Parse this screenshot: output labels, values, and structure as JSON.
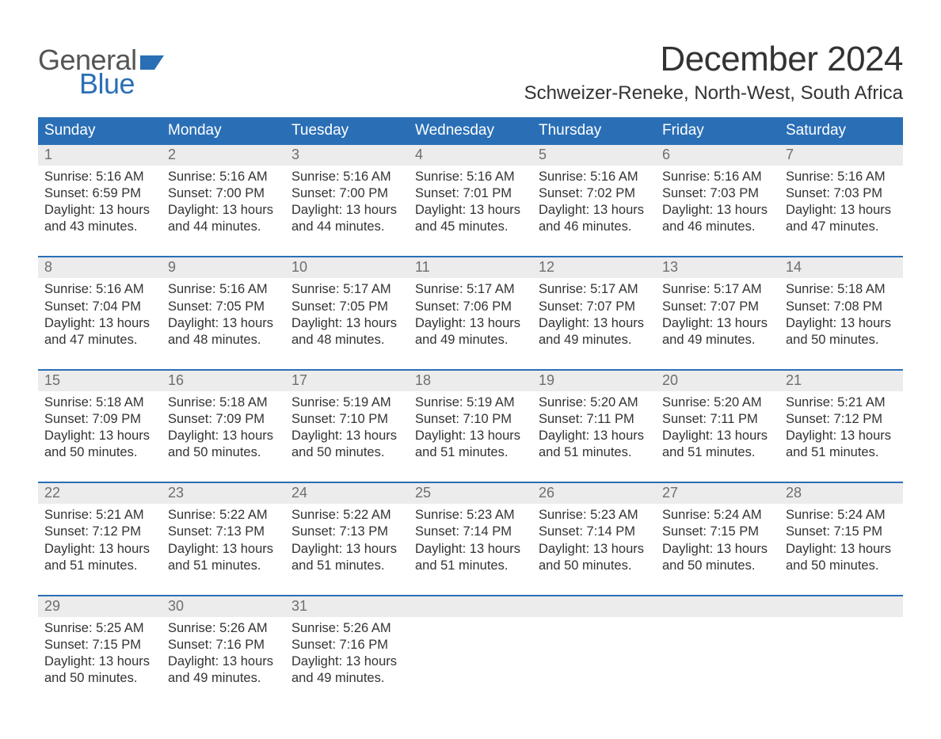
{
  "logo": {
    "text1": "General",
    "text2": "Blue"
  },
  "title": "December 2024",
  "subtitle": "Schweizer-Reneke, North-West, South Africa",
  "colors": {
    "header_bg": "#2a6fb6",
    "header_text": "#ffffff",
    "date_row_bg": "#ececec",
    "date_text": "#6e6e6e",
    "week_divider": "#2a6fb6",
    "body_text": "#333333",
    "logo_gray": "#555555",
    "logo_blue": "#2a6fb6",
    "page_bg": "#ffffff"
  },
  "typography": {
    "title_fontsize": 44,
    "subtitle_fontsize": 24,
    "header_fontsize": 19,
    "datenum_fontsize": 18,
    "body_fontsize": 16.5,
    "logo_fontsize": 36,
    "font_family": "Arial"
  },
  "day_names": [
    "Sunday",
    "Monday",
    "Tuesday",
    "Wednesday",
    "Thursday",
    "Friday",
    "Saturday"
  ],
  "weeks": [
    [
      {
        "date": "1",
        "sunrise": "Sunrise: 5:16 AM",
        "sunset": "Sunset: 6:59 PM",
        "daylight1": "Daylight: 13 hours",
        "daylight2": "and 43 minutes."
      },
      {
        "date": "2",
        "sunrise": "Sunrise: 5:16 AM",
        "sunset": "Sunset: 7:00 PM",
        "daylight1": "Daylight: 13 hours",
        "daylight2": "and 44 minutes."
      },
      {
        "date": "3",
        "sunrise": "Sunrise: 5:16 AM",
        "sunset": "Sunset: 7:00 PM",
        "daylight1": "Daylight: 13 hours",
        "daylight2": "and 44 minutes."
      },
      {
        "date": "4",
        "sunrise": "Sunrise: 5:16 AM",
        "sunset": "Sunset: 7:01 PM",
        "daylight1": "Daylight: 13 hours",
        "daylight2": "and 45 minutes."
      },
      {
        "date": "5",
        "sunrise": "Sunrise: 5:16 AM",
        "sunset": "Sunset: 7:02 PM",
        "daylight1": "Daylight: 13 hours",
        "daylight2": "and 46 minutes."
      },
      {
        "date": "6",
        "sunrise": "Sunrise: 5:16 AM",
        "sunset": "Sunset: 7:03 PM",
        "daylight1": "Daylight: 13 hours",
        "daylight2": "and 46 minutes."
      },
      {
        "date": "7",
        "sunrise": "Sunrise: 5:16 AM",
        "sunset": "Sunset: 7:03 PM",
        "daylight1": "Daylight: 13 hours",
        "daylight2": "and 47 minutes."
      }
    ],
    [
      {
        "date": "8",
        "sunrise": "Sunrise: 5:16 AM",
        "sunset": "Sunset: 7:04 PM",
        "daylight1": "Daylight: 13 hours",
        "daylight2": "and 47 minutes."
      },
      {
        "date": "9",
        "sunrise": "Sunrise: 5:16 AM",
        "sunset": "Sunset: 7:05 PM",
        "daylight1": "Daylight: 13 hours",
        "daylight2": "and 48 minutes."
      },
      {
        "date": "10",
        "sunrise": "Sunrise: 5:17 AM",
        "sunset": "Sunset: 7:05 PM",
        "daylight1": "Daylight: 13 hours",
        "daylight2": "and 48 minutes."
      },
      {
        "date": "11",
        "sunrise": "Sunrise: 5:17 AM",
        "sunset": "Sunset: 7:06 PM",
        "daylight1": "Daylight: 13 hours",
        "daylight2": "and 49 minutes."
      },
      {
        "date": "12",
        "sunrise": "Sunrise: 5:17 AM",
        "sunset": "Sunset: 7:07 PM",
        "daylight1": "Daylight: 13 hours",
        "daylight2": "and 49 minutes."
      },
      {
        "date": "13",
        "sunrise": "Sunrise: 5:17 AM",
        "sunset": "Sunset: 7:07 PM",
        "daylight1": "Daylight: 13 hours",
        "daylight2": "and 49 minutes."
      },
      {
        "date": "14",
        "sunrise": "Sunrise: 5:18 AM",
        "sunset": "Sunset: 7:08 PM",
        "daylight1": "Daylight: 13 hours",
        "daylight2": "and 50 minutes."
      }
    ],
    [
      {
        "date": "15",
        "sunrise": "Sunrise: 5:18 AM",
        "sunset": "Sunset: 7:09 PM",
        "daylight1": "Daylight: 13 hours",
        "daylight2": "and 50 minutes."
      },
      {
        "date": "16",
        "sunrise": "Sunrise: 5:18 AM",
        "sunset": "Sunset: 7:09 PM",
        "daylight1": "Daylight: 13 hours",
        "daylight2": "and 50 minutes."
      },
      {
        "date": "17",
        "sunrise": "Sunrise: 5:19 AM",
        "sunset": "Sunset: 7:10 PM",
        "daylight1": "Daylight: 13 hours",
        "daylight2": "and 50 minutes."
      },
      {
        "date": "18",
        "sunrise": "Sunrise: 5:19 AM",
        "sunset": "Sunset: 7:10 PM",
        "daylight1": "Daylight: 13 hours",
        "daylight2": "and 51 minutes."
      },
      {
        "date": "19",
        "sunrise": "Sunrise: 5:20 AM",
        "sunset": "Sunset: 7:11 PM",
        "daylight1": "Daylight: 13 hours",
        "daylight2": "and 51 minutes."
      },
      {
        "date": "20",
        "sunrise": "Sunrise: 5:20 AM",
        "sunset": "Sunset: 7:11 PM",
        "daylight1": "Daylight: 13 hours",
        "daylight2": "and 51 minutes."
      },
      {
        "date": "21",
        "sunrise": "Sunrise: 5:21 AM",
        "sunset": "Sunset: 7:12 PM",
        "daylight1": "Daylight: 13 hours",
        "daylight2": "and 51 minutes."
      }
    ],
    [
      {
        "date": "22",
        "sunrise": "Sunrise: 5:21 AM",
        "sunset": "Sunset: 7:12 PM",
        "daylight1": "Daylight: 13 hours",
        "daylight2": "and 51 minutes."
      },
      {
        "date": "23",
        "sunrise": "Sunrise: 5:22 AM",
        "sunset": "Sunset: 7:13 PM",
        "daylight1": "Daylight: 13 hours",
        "daylight2": "and 51 minutes."
      },
      {
        "date": "24",
        "sunrise": "Sunrise: 5:22 AM",
        "sunset": "Sunset: 7:13 PM",
        "daylight1": "Daylight: 13 hours",
        "daylight2": "and 51 minutes."
      },
      {
        "date": "25",
        "sunrise": "Sunrise: 5:23 AM",
        "sunset": "Sunset: 7:14 PM",
        "daylight1": "Daylight: 13 hours",
        "daylight2": "and 51 minutes."
      },
      {
        "date": "26",
        "sunrise": "Sunrise: 5:23 AM",
        "sunset": "Sunset: 7:14 PM",
        "daylight1": "Daylight: 13 hours",
        "daylight2": "and 50 minutes."
      },
      {
        "date": "27",
        "sunrise": "Sunrise: 5:24 AM",
        "sunset": "Sunset: 7:15 PM",
        "daylight1": "Daylight: 13 hours",
        "daylight2": "and 50 minutes."
      },
      {
        "date": "28",
        "sunrise": "Sunrise: 5:24 AM",
        "sunset": "Sunset: 7:15 PM",
        "daylight1": "Daylight: 13 hours",
        "daylight2": "and 50 minutes."
      }
    ],
    [
      {
        "date": "29",
        "sunrise": "Sunrise: 5:25 AM",
        "sunset": "Sunset: 7:15 PM",
        "daylight1": "Daylight: 13 hours",
        "daylight2": "and 50 minutes."
      },
      {
        "date": "30",
        "sunrise": "Sunrise: 5:26 AM",
        "sunset": "Sunset: 7:16 PM",
        "daylight1": "Daylight: 13 hours",
        "daylight2": "and 49 minutes."
      },
      {
        "date": "31",
        "sunrise": "Sunrise: 5:26 AM",
        "sunset": "Sunset: 7:16 PM",
        "daylight1": "Daylight: 13 hours",
        "daylight2": "and 49 minutes."
      },
      {
        "date": "",
        "sunrise": "",
        "sunset": "",
        "daylight1": "",
        "daylight2": ""
      },
      {
        "date": "",
        "sunrise": "",
        "sunset": "",
        "daylight1": "",
        "daylight2": ""
      },
      {
        "date": "",
        "sunrise": "",
        "sunset": "",
        "daylight1": "",
        "daylight2": ""
      },
      {
        "date": "",
        "sunrise": "",
        "sunset": "",
        "daylight1": "",
        "daylight2": ""
      }
    ]
  ]
}
